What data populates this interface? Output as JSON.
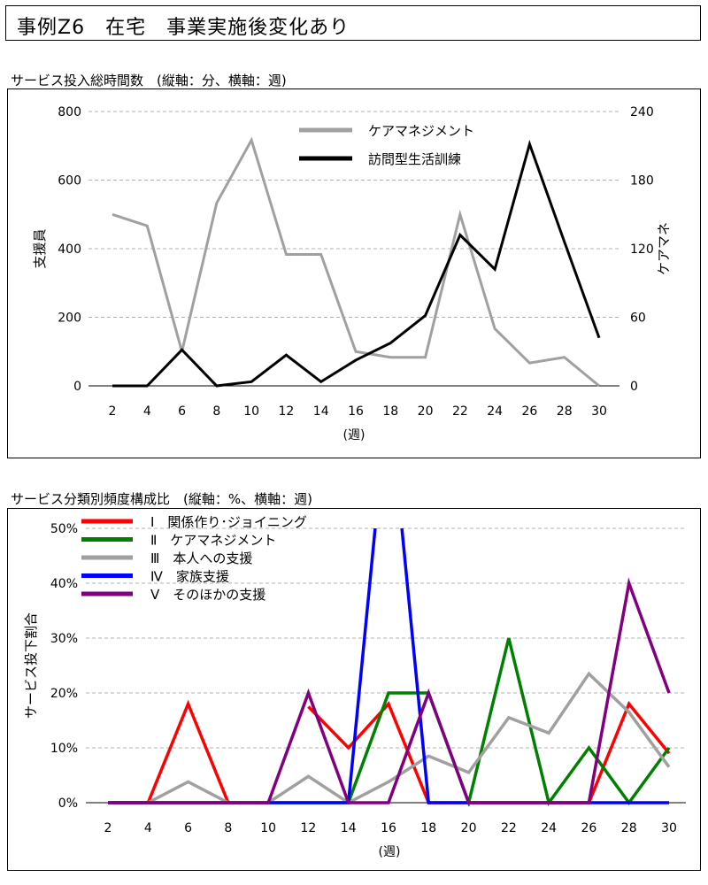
{
  "page_title": "事例Z6　在宅　事業実施後変化あり",
  "chart_data": [
    {
      "type": "line",
      "title": "サービス投入総時間数　(縦軸：分、横軸：週)",
      "xlabel": "(週)",
      "ylabel_left": "支援員",
      "ylabel_right": "ケアマネ",
      "x": [
        2,
        4,
        6,
        8,
        10,
        12,
        14,
        16,
        18,
        20,
        22,
        24,
        26,
        28,
        30
      ],
      "ylim_left": [
        0,
        800
      ],
      "yticks_left": [
        0,
        200,
        400,
        600,
        800
      ],
      "ylim_right": [
        0,
        240
      ],
      "yticks_right": [
        0,
        60,
        120,
        180,
        240
      ],
      "grid": "horizontal dashed",
      "legend_position": "top-center",
      "series": [
        {
          "name": "ケアマネジメント",
          "axis": "right",
          "color": "#a0a0a0",
          "values": [
            150,
            140,
            30,
            160,
            215,
            115,
            115,
            30,
            25,
            25,
            150,
            50,
            20,
            25,
            0
          ]
        },
        {
          "name": "訪問型生活訓練",
          "axis": "left",
          "color": "#000000",
          "values": [
            0,
            0,
            105,
            0,
            12,
            90,
            12,
            75,
            125,
            205,
            440,
            340,
            705,
            420,
            140
          ]
        }
      ]
    },
    {
      "type": "line",
      "title": "サービス分類別頻度構成比　(縦軸：%、横軸：週)",
      "xlabel": "(週)",
      "ylabel": "サービス投下割合",
      "x": [
        2,
        4,
        6,
        8,
        10,
        12,
        14,
        16,
        18,
        20,
        22,
        24,
        26,
        28,
        30
      ],
      "ylim": [
        0,
        50
      ],
      "yticks": [
        0,
        10,
        20,
        30,
        40,
        50
      ],
      "ytick_suffix": "%",
      "grid": "horizontal dashed",
      "legend_position": "top-left",
      "series": [
        {
          "name": "Ⅰ　関係作り･ジョイニング",
          "color": "#ff0000",
          "values": [
            0,
            0,
            18,
            0,
            null,
            17.5,
            10,
            18,
            0,
            0,
            0,
            0,
            0,
            18,
            9
          ]
        },
        {
          "name": "Ⅱ　ケアマネジメント",
          "color": "#008000",
          "values": [
            0,
            0,
            0,
            0,
            0,
            0,
            0,
            20,
            20,
            0,
            30,
            0,
            10,
            0,
            10
          ]
        },
        {
          "name": "Ⅲ　本人への支援",
          "color": "#a0a0a0",
          "values": [
            0,
            0,
            3.8,
            0,
            0,
            4.8,
            0,
            3.8,
            8.5,
            5.5,
            15.5,
            12.7,
            23.5,
            16.5,
            6.5
          ]
        },
        {
          "name": "Ⅳ　家族支援",
          "color": "#0000ff",
          "values": [
            0,
            0,
            0,
            0,
            0,
            0,
            0,
            75,
            0,
            0,
            0,
            0,
            0,
            0,
            0
          ]
        },
        {
          "name": "Ⅴ　そのほかの支援",
          "color": "#800080",
          "values": [
            0,
            0,
            0,
            0,
            0,
            20,
            0,
            0,
            20,
            0,
            0,
            0,
            0,
            40,
            20
          ]
        }
      ]
    }
  ]
}
